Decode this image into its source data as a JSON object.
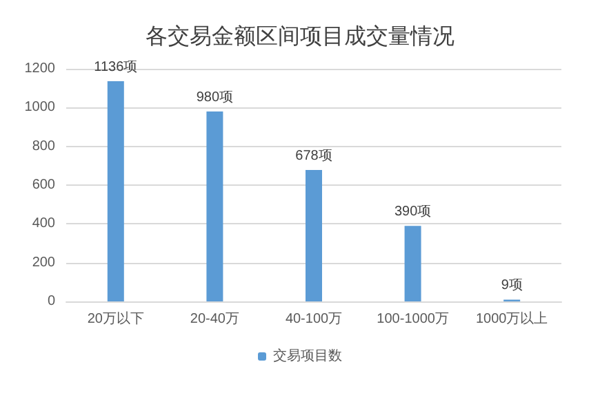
{
  "chart_data": {
    "type": "bar",
    "title": "各交易金额区间项目成交量情况",
    "categories": [
      "20万以下",
      "20-40万",
      "40-100万",
      "100-1000万",
      "1000万以上"
    ],
    "series": [
      {
        "name": "交易项目数",
        "color": "#5b9bd5",
        "values": [
          1136,
          980,
          678,
          390,
          9
        ],
        "value_labels": [
          "1136项",
          "980项",
          "678项",
          "390项",
          "9项"
        ]
      }
    ],
    "ylim": [
      0,
      1200
    ],
    "yticks": [
      0,
      200,
      400,
      600,
      800,
      1000,
      1200
    ],
    "grid": "y",
    "legend": "bottom"
  }
}
